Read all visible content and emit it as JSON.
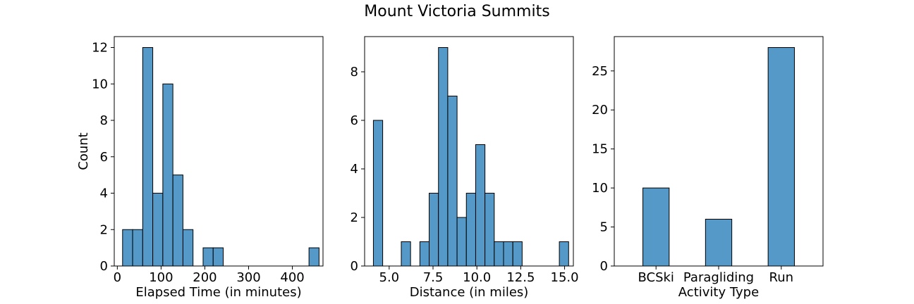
{
  "title": "Mount Victoria Summits",
  "colors": {
    "bar_fill": "#5499c7",
    "bar_stroke": "#000000",
    "frame": "#000000"
  },
  "chart_data": [
    {
      "type": "bar",
      "subtype": "histogram",
      "xlabel": "Elapsed Time (in minutes)",
      "ylabel": "Count",
      "xlim": [
        -7,
        470
      ],
      "ylim": [
        0,
        12.6
      ],
      "xticks": [
        0,
        100,
        200,
        300,
        400
      ],
      "yticks": [
        0,
        2,
        4,
        6,
        8,
        10,
        12
      ],
      "bins": [
        {
          "x0": 12,
          "x1": 35,
          "count": 2
        },
        {
          "x0": 35,
          "x1": 58,
          "count": 2
        },
        {
          "x0": 58,
          "x1": 81,
          "count": 12
        },
        {
          "x0": 81,
          "x1": 104,
          "count": 4
        },
        {
          "x0": 104,
          "x1": 127,
          "count": 10
        },
        {
          "x0": 127,
          "x1": 150,
          "count": 5
        },
        {
          "x0": 150,
          "x1": 173,
          "count": 2
        },
        {
          "x0": 196,
          "x1": 219,
          "count": 1
        },
        {
          "x0": 219,
          "x1": 242,
          "count": 1
        },
        {
          "x0": 438,
          "x1": 461,
          "count": 1
        }
      ]
    },
    {
      "type": "bar",
      "subtype": "histogram",
      "xlabel": "Distance (in miles)",
      "ylabel": "",
      "xlim": [
        3.6,
        15.5
      ],
      "ylim": [
        0,
        9.45
      ],
      "xticks": [
        5.0,
        7.5,
        10.0,
        12.5,
        15.0
      ],
      "xtick_labels": [
        "5.0",
        "7.5",
        "10.0",
        "12.5",
        "15.0"
      ],
      "yticks": [
        0,
        2,
        4,
        6,
        8
      ],
      "bins": [
        {
          "x0": 4.1,
          "x1": 4.63,
          "count": 6
        },
        {
          "x0": 5.69,
          "x1": 6.22,
          "count": 1
        },
        {
          "x0": 6.75,
          "x1": 7.28,
          "count": 1
        },
        {
          "x0": 7.28,
          "x1": 7.81,
          "count": 3
        },
        {
          "x0": 7.81,
          "x1": 8.34,
          "count": 9
        },
        {
          "x0": 8.34,
          "x1": 8.87,
          "count": 7
        },
        {
          "x0": 8.87,
          "x1": 9.4,
          "count": 2
        },
        {
          "x0": 9.4,
          "x1": 9.93,
          "count": 3
        },
        {
          "x0": 9.93,
          "x1": 10.46,
          "count": 5
        },
        {
          "x0": 10.46,
          "x1": 10.99,
          "count": 3
        },
        {
          "x0": 10.99,
          "x1": 11.52,
          "count": 1
        },
        {
          "x0": 11.52,
          "x1": 12.05,
          "count": 1
        },
        {
          "x0": 12.05,
          "x1": 12.58,
          "count": 1
        },
        {
          "x0": 14.7,
          "x1": 15.23,
          "count": 1
        }
      ]
    },
    {
      "type": "bar",
      "subtype": "categorical-histogram",
      "xlabel": "Activity Type",
      "ylabel": "",
      "categories": [
        "BCSki",
        "Paragliding",
        "Run"
      ],
      "values": [
        10,
        6,
        28
      ],
      "ylim": [
        0,
        29.4
      ],
      "yticks": [
        0,
        5,
        10,
        15,
        20,
        25
      ]
    }
  ]
}
